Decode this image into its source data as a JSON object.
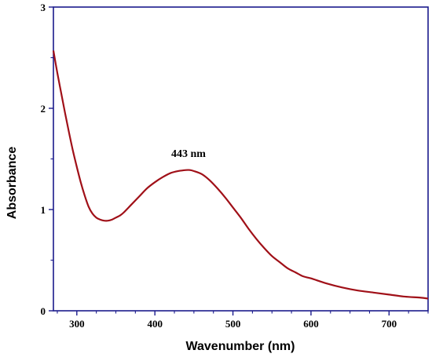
{
  "chart_data": {
    "type": "line",
    "title": "",
    "xlabel": "Wavenumber (nm)",
    "ylabel": "Absorbance",
    "xlim": [
      270,
      750
    ],
    "ylim": [
      0,
      3
    ],
    "xticks": [
      300,
      400,
      500,
      600,
      700
    ],
    "yticks": [
      0,
      1,
      2,
      3
    ],
    "xtick_labels": [
      "300",
      "400",
      "500",
      "600",
      "700"
    ],
    "ytick_labels": [
      "0",
      "1",
      "2",
      "3"
    ],
    "grid": false,
    "legend": "none",
    "annotations": [
      {
        "text": "443 nm",
        "x": 443,
        "y": 1.52
      }
    ],
    "series": [
      {
        "color": "#a01018",
        "x": [
          270,
          275,
          280,
          285,
          290,
          295,
          300,
          305,
          310,
          315,
          320,
          325,
          330,
          335,
          340,
          345,
          350,
          355,
          360,
          370,
          380,
          390,
          400,
          410,
          420,
          430,
          440,
          445,
          450,
          460,
          470,
          480,
          490,
          500,
          510,
          520,
          530,
          540,
          550,
          560,
          570,
          580,
          590,
          600,
          620,
          640,
          660,
          680,
          700,
          720,
          740,
          750
        ],
        "y": [
          2.57,
          2.35,
          2.15,
          1.95,
          1.76,
          1.58,
          1.42,
          1.27,
          1.14,
          1.03,
          0.96,
          0.92,
          0.9,
          0.89,
          0.89,
          0.9,
          0.92,
          0.94,
          0.97,
          1.05,
          1.13,
          1.21,
          1.27,
          1.32,
          1.36,
          1.38,
          1.39,
          1.39,
          1.38,
          1.35,
          1.29,
          1.21,
          1.12,
          1.02,
          0.92,
          0.81,
          0.71,
          0.62,
          0.54,
          0.48,
          0.42,
          0.38,
          0.34,
          0.32,
          0.27,
          0.23,
          0.2,
          0.18,
          0.16,
          0.14,
          0.13,
          0.12
        ]
      }
    ]
  }
}
